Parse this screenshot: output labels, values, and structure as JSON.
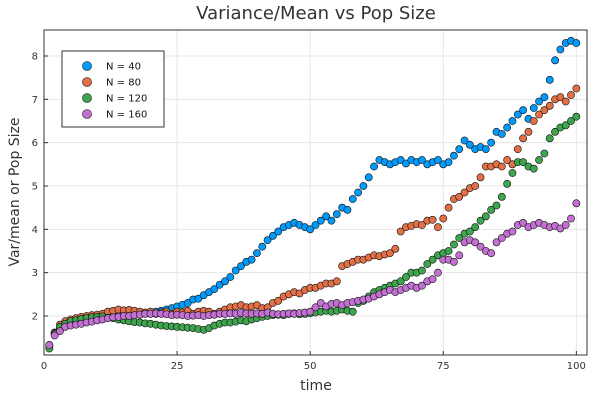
{
  "chart_data": {
    "type": "scatter",
    "title": "Variance/Mean vs Pop Size",
    "xlabel": "time",
    "ylabel": "Var/mean or Pop Size",
    "xlim": [
      0,
      102
    ],
    "ylim": [
      1.1,
      8.6
    ],
    "xticks": [
      0,
      25,
      50,
      75,
      100
    ],
    "yticks": [
      2,
      3,
      4,
      5,
      6,
      7,
      8
    ],
    "grid": true,
    "legend_position": "top-left",
    "x": [
      1,
      2,
      3,
      4,
      5,
      6,
      7,
      8,
      9,
      10,
      11,
      12,
      13,
      14,
      15,
      16,
      17,
      18,
      19,
      20,
      21,
      22,
      23,
      24,
      25,
      26,
      27,
      28,
      29,
      30,
      31,
      32,
      33,
      34,
      35,
      36,
      37,
      38,
      39,
      40,
      41,
      42,
      43,
      44,
      45,
      46,
      47,
      48,
      49,
      50,
      51,
      52,
      53,
      54,
      55,
      56,
      57,
      58,
      59,
      60,
      61,
      62,
      63,
      64,
      65,
      66,
      67,
      68,
      69,
      70,
      71,
      72,
      73,
      74,
      75,
      76,
      77,
      78,
      79,
      80,
      81,
      82,
      83,
      84,
      85,
      86,
      87,
      88,
      89,
      90,
      91,
      92,
      93,
      94,
      95,
      96,
      97,
      98,
      99,
      100
    ],
    "series": [
      {
        "name": "N = 40",
        "color": "#009AFA",
        "values": [
          1.33,
          1.62,
          1.72,
          1.8,
          1.84,
          1.87,
          1.9,
          1.92,
          1.95,
          1.97,
          1.98,
          2.0,
          2.02,
          2.03,
          2.05,
          2.06,
          2.05,
          2.08,
          2.07,
          2.08,
          2.1,
          2.12,
          2.15,
          2.18,
          2.22,
          2.26,
          2.3,
          2.38,
          2.4,
          2.48,
          2.55,
          2.62,
          2.72,
          2.8,
          2.9,
          3.05,
          3.15,
          3.25,
          3.3,
          3.45,
          3.6,
          3.75,
          3.85,
          3.95,
          4.05,
          4.1,
          4.15,
          4.1,
          4.05,
          4.0,
          4.1,
          4.2,
          4.3,
          4.2,
          4.35,
          4.5,
          4.45,
          4.7,
          4.85,
          5.0,
          5.2,
          5.45,
          5.6,
          5.55,
          5.5,
          5.55,
          5.6,
          5.52,
          5.6,
          5.55,
          5.6,
          5.5,
          5.55,
          5.6,
          5.5,
          5.55,
          5.7,
          5.85,
          6.05,
          5.95,
          5.85,
          5.9,
          5.85,
          6.0,
          6.25,
          6.2,
          6.35,
          6.5,
          6.65,
          6.75,
          6.55,
          6.8,
          6.95,
          7.05,
          7.45,
          7.9,
          8.15,
          8.3,
          8.35,
          8.3
        ]
      },
      {
        "name": "N = 80",
        "color": "#E26F46",
        "values": [
          1.3,
          1.6,
          1.8,
          1.88,
          1.92,
          1.95,
          1.98,
          2.0,
          2.02,
          2.03,
          2.05,
          2.1,
          2.12,
          2.15,
          2.13,
          2.14,
          2.12,
          2.1,
          2.08,
          2.1,
          2.05,
          2.08,
          2.1,
          2.05,
          2.1,
          2.08,
          2.12,
          2.05,
          2.1,
          2.12,
          2.1,
          2.05,
          2.1,
          2.15,
          2.2,
          2.22,
          2.25,
          2.2,
          2.22,
          2.25,
          2.18,
          2.2,
          2.3,
          2.35,
          2.45,
          2.5,
          2.55,
          2.52,
          2.6,
          2.65,
          2.65,
          2.7,
          2.75,
          2.75,
          2.8,
          3.15,
          3.2,
          3.25,
          3.3,
          3.3,
          3.35,
          3.4,
          3.38,
          3.42,
          3.45,
          3.55,
          3.95,
          4.05,
          4.08,
          4.12,
          4.1,
          4.2,
          4.22,
          4.05,
          4.25,
          4.5,
          4.7,
          4.75,
          4.85,
          4.95,
          5.0,
          5.2,
          5.45,
          5.45,
          5.5,
          5.45,
          5.6,
          5.5,
          5.85,
          6.1,
          6.25,
          6.5,
          6.65,
          6.75,
          6.85,
          7.0,
          7.05,
          6.95,
          7.1,
          7.25
        ]
      },
      {
        "name": "N = 120",
        "color": "#3EA44E",
        "values": [
          1.25,
          1.58,
          1.75,
          1.82,
          1.88,
          1.9,
          1.93,
          1.95,
          1.97,
          1.98,
          1.99,
          1.96,
          1.95,
          1.92,
          1.9,
          1.88,
          1.86,
          1.85,
          1.83,
          1.82,
          1.8,
          1.78,
          1.77,
          1.76,
          1.75,
          1.74,
          1.73,
          1.72,
          1.7,
          1.68,
          1.72,
          1.78,
          1.82,
          1.85,
          1.85,
          1.87,
          1.9,
          1.88,
          1.92,
          1.95,
          1.98,
          2.0,
          2.02,
          2.03,
          2.02,
          2.05,
          2.06,
          2.04,
          2.05,
          2.06,
          2.08,
          2.1,
          2.12,
          2.1,
          2.12,
          2.15,
          2.12,
          2.1,
          2.3,
          2.35,
          2.45,
          2.55,
          2.6,
          2.65,
          2.7,
          2.75,
          2.8,
          2.9,
          3.0,
          3.0,
          3.05,
          3.2,
          3.3,
          3.4,
          3.45,
          3.5,
          3.65,
          3.8,
          3.9,
          3.95,
          4.05,
          4.2,
          4.3,
          4.45,
          4.55,
          4.75,
          5.05,
          5.3,
          5.55,
          5.55,
          5.45,
          5.4,
          5.6,
          5.75,
          6.1,
          6.25,
          6.35,
          6.4,
          6.5,
          6.6
        ]
      },
      {
        "name": "N = 160",
        "color": "#C271D2",
        "values": [
          1.33,
          1.55,
          1.65,
          1.75,
          1.78,
          1.8,
          1.82,
          1.85,
          1.87,
          1.9,
          1.92,
          1.95,
          1.97,
          1.98,
          2.0,
          2.0,
          2.02,
          2.03,
          2.05,
          2.05,
          2.06,
          2.05,
          2.04,
          2.02,
          2.03,
          2.02,
          2.0,
          2.01,
          2.02,
          2.0,
          2.02,
          2.03,
          2.05,
          2.05,
          2.06,
          2.05,
          2.07,
          2.06,
          2.05,
          2.06,
          2.05,
          2.08,
          2.05,
          2.04,
          2.05,
          2.06,
          2.05,
          2.07,
          2.08,
          2.1,
          2.2,
          2.3,
          2.22,
          2.28,
          2.3,
          2.25,
          2.3,
          2.32,
          2.35,
          2.38,
          2.4,
          2.45,
          2.5,
          2.55,
          2.6,
          2.55,
          2.6,
          2.65,
          2.7,
          2.65,
          2.7,
          2.8,
          2.85,
          3.0,
          3.3,
          3.3,
          3.25,
          3.4,
          3.7,
          3.75,
          3.7,
          3.6,
          3.5,
          3.45,
          3.7,
          3.8,
          3.9,
          3.95,
          4.1,
          4.15,
          4.05,
          4.1,
          4.15,
          4.1,
          4.05,
          4.08,
          4.02,
          4.1,
          4.25,
          4.6
        ]
      }
    ]
  }
}
